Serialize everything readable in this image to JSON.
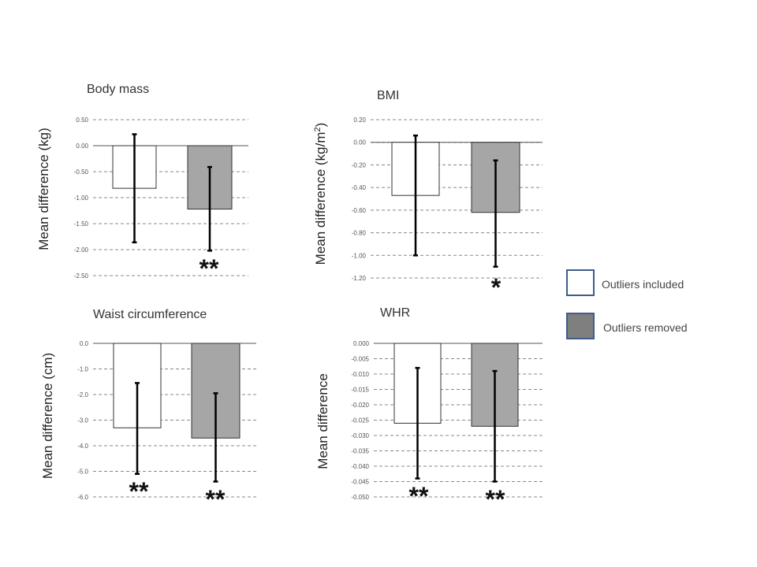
{
  "chart_data": [
    {
      "type": "bar",
      "title": "Body mass",
      "ylabel": "Mean difference (kg)",
      "categories": [
        "Outliers included",
        "Outliers removed"
      ],
      "values": [
        -0.82,
        -1.22
      ],
      "error_upper": [
        0.22,
        -0.41
      ],
      "error_lower": [
        -1.86,
        -2.02
      ],
      "ylim": [
        -2.5,
        0.5
      ],
      "yticks": [
        "0.50",
        "0.00",
        "-0.50",
        "-1.00",
        "-1.50",
        "-2.00",
        "-2.50"
      ],
      "significance": [
        "",
        "**"
      ],
      "grid": true
    },
    {
      "type": "bar",
      "title": "BMI",
      "ylabel": "Mean difference (kg/m",
      "ylabel_sup": "2",
      "ylabel_end": ")",
      "categories": [
        "Outliers included",
        "Outliers removed"
      ],
      "values": [
        -0.47,
        -0.62
      ],
      "error_upper": [
        0.06,
        -0.16
      ],
      "error_lower": [
        -1.0,
        -1.1
      ],
      "ylim": [
        -1.2,
        0.2
      ],
      "yticks": [
        "0.20",
        "0.00",
        "-0.20",
        "-0.40",
        "-0.60",
        "-0.80",
        "-1.00",
        "-1.20"
      ],
      "significance": [
        "",
        "*"
      ],
      "grid": true
    },
    {
      "type": "bar",
      "title": "Waist circumference",
      "ylabel": "Mean difference (cm)",
      "categories": [
        "Outliers included",
        "Outliers removed"
      ],
      "values": [
        -3.3,
        -3.7
      ],
      "error_upper": [
        -1.55,
        -1.95
      ],
      "error_lower": [
        -5.1,
        -5.4
      ],
      "ylim": [
        -6.0,
        0.0
      ],
      "yticks": [
        "0.0",
        "-1.0",
        "-2.0",
        "-3.0",
        "-4.0",
        "-5.0",
        "-6.0"
      ],
      "significance": [
        "**",
        "**"
      ],
      "grid": true
    },
    {
      "type": "bar",
      "title": "WHR",
      "ylabel": "Mean difference",
      "categories": [
        "Outliers included",
        "Outliers removed"
      ],
      "values": [
        -0.026,
        -0.027
      ],
      "error_upper": [
        -0.008,
        -0.009
      ],
      "error_lower": [
        -0.044,
        -0.045
      ],
      "ylim": [
        -0.05,
        0.0
      ],
      "yticks": [
        "0.000",
        "-0.005",
        "-0.010",
        "-0.015",
        "-0.020",
        "-0.025",
        "-0.030",
        "-0.035",
        "-0.040",
        "-0.045",
        "-0.050"
      ],
      "significance": [
        "**",
        "**"
      ],
      "grid": true
    }
  ],
  "legend": {
    "placement": "right",
    "items": [
      {
        "label": "Outliers included",
        "color": "#ffffff"
      },
      {
        "label": "Outliers removed",
        "color": "#7f7f7f"
      }
    ]
  },
  "colors": {
    "included": "#ffffff",
    "removed": "#a6a6a6",
    "legend_border": "#3f5c8a",
    "grid": "#888888"
  }
}
